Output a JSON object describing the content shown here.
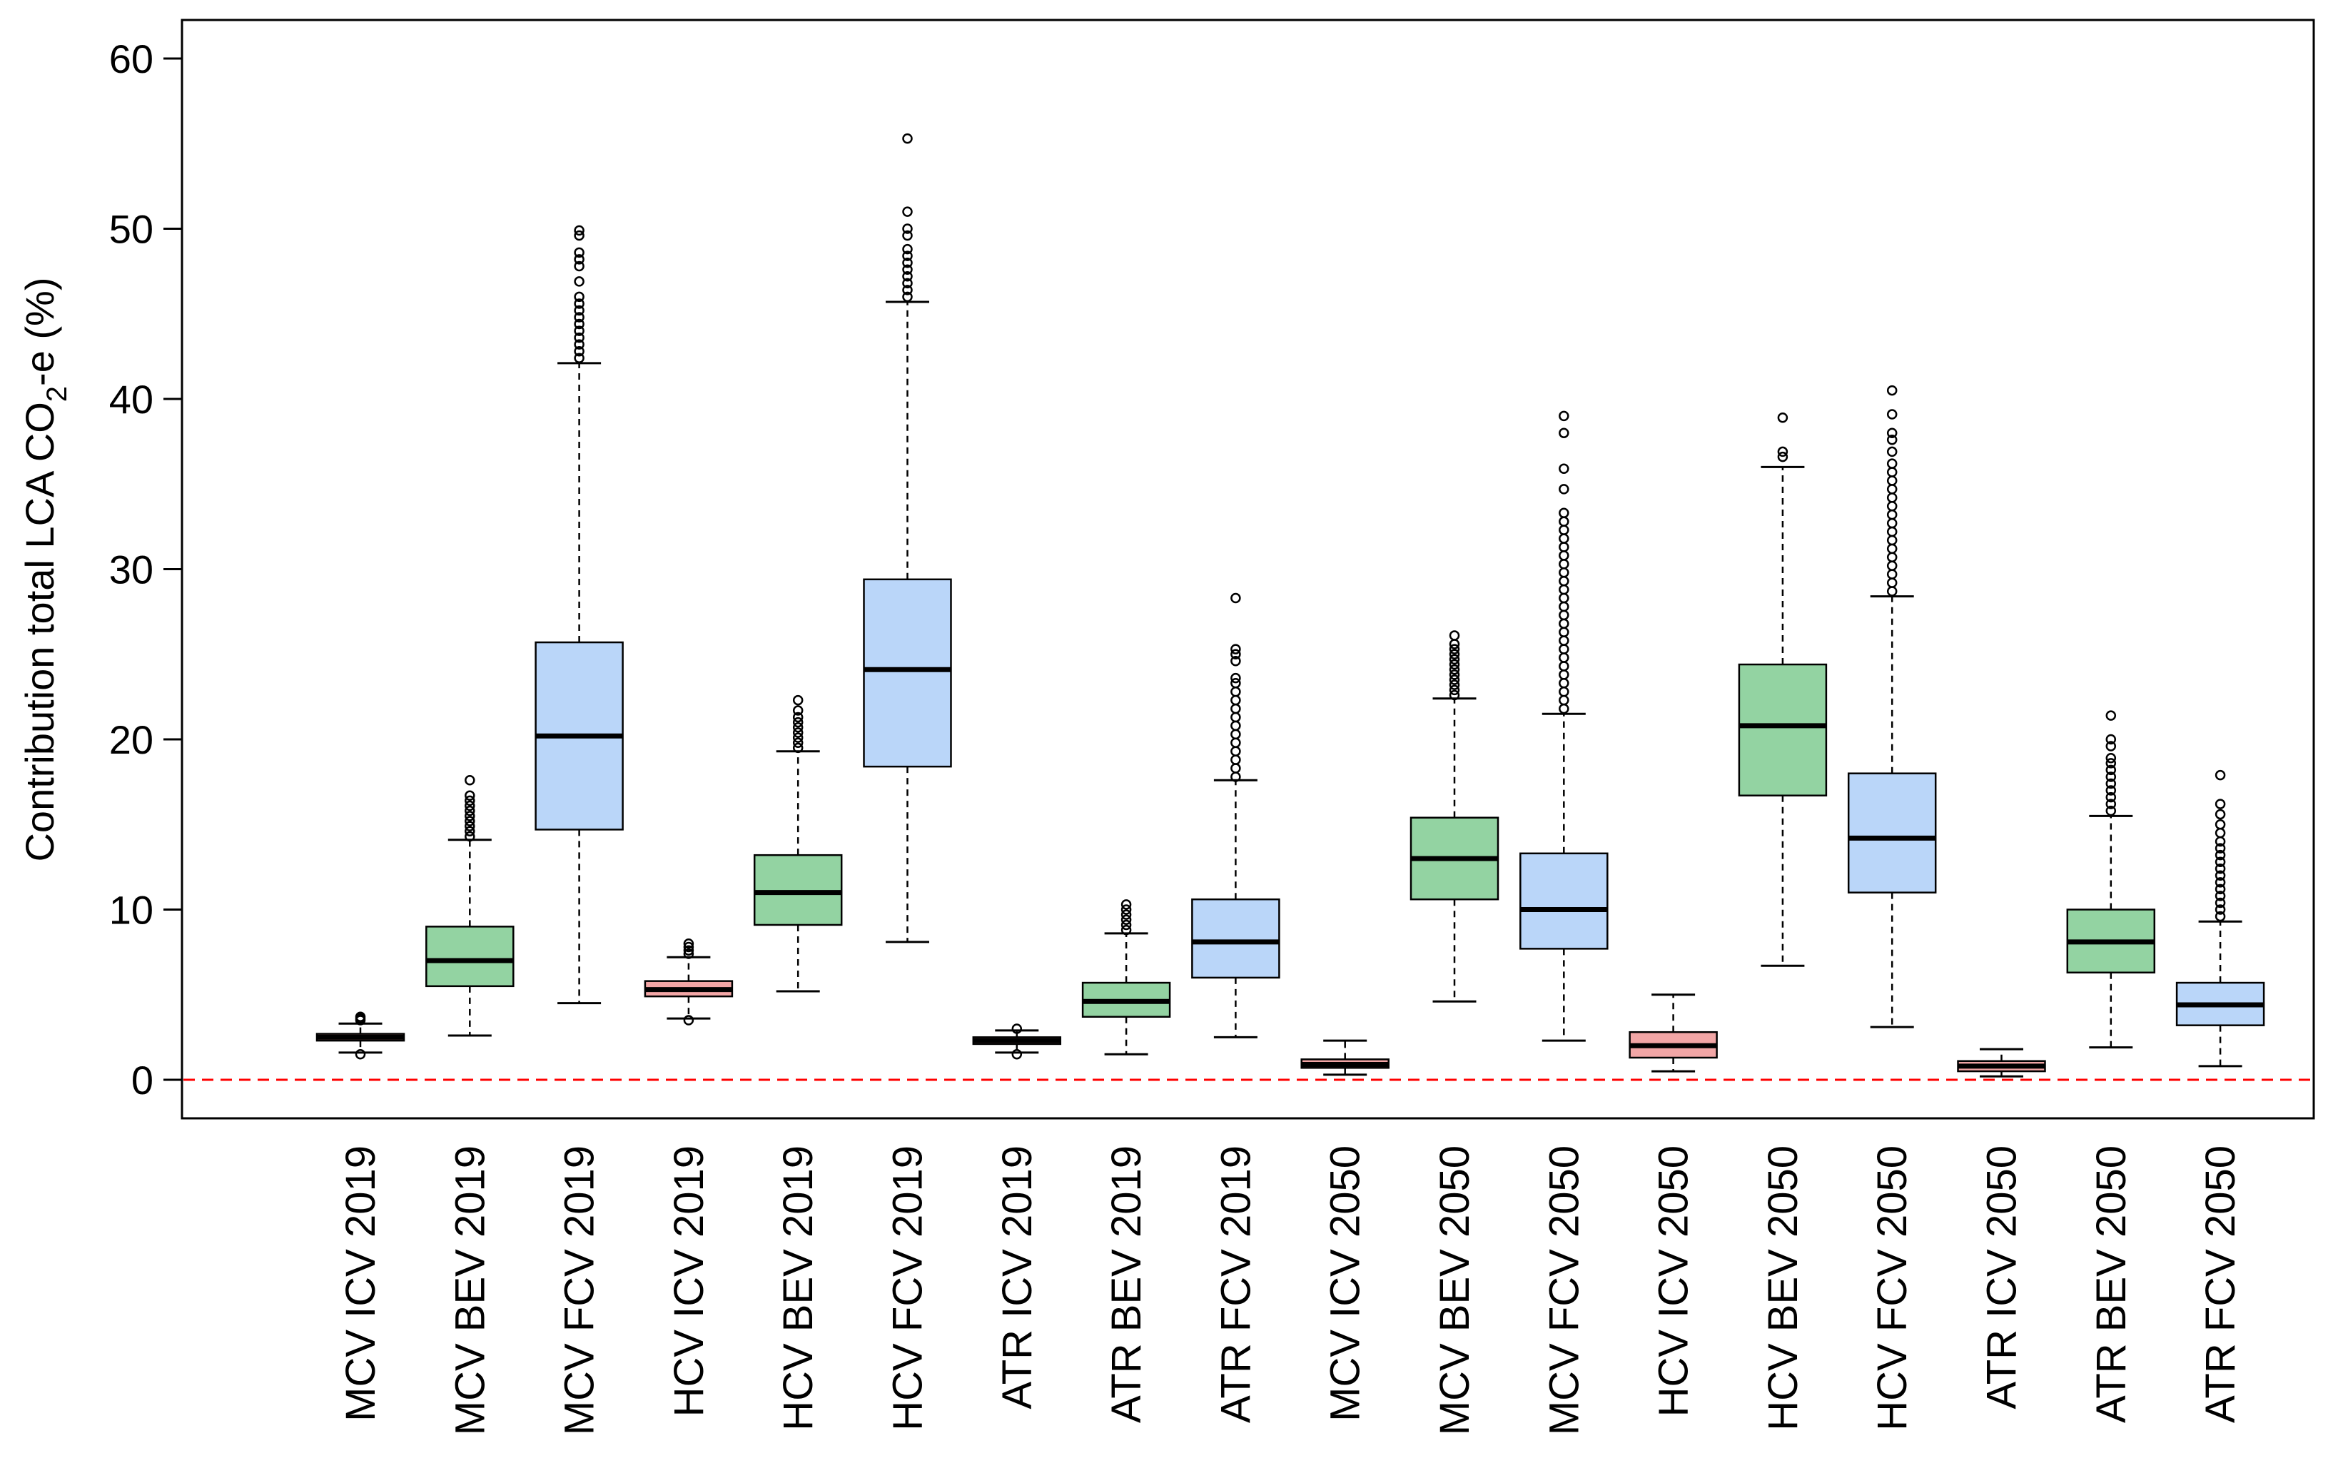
{
  "chart_data": {
    "type": "boxplot",
    "ylabel_main": "Contribution total LCA CO",
    "ylabel_sub": "2",
    "ylabel_tail": "-e (%)",
    "ylim": [
      -2.5,
      62
    ],
    "yticks": [
      0,
      10,
      20,
      30,
      40,
      50,
      60
    ],
    "reference_line": {
      "y": 0,
      "color": "#ff0000",
      "style": "dashed"
    },
    "colors": {
      "ICV": "#f2a6a6",
      "BEV": "#93d3a2",
      "FCV": "#bad6f9"
    },
    "categories": [
      "MCV ICV 2019",
      "MCV BEV 2019",
      "MCV FCV 2019",
      "HCV ICV 2019",
      "HCV BEV 2019",
      "HCV FCV 2019",
      "ATR ICV 2019",
      "ATR BEV 2019",
      "ATR FCV 2019",
      "MCV ICV 2050",
      "MCV BEV 2050",
      "MCV FCV 2050",
      "HCV ICV 2050",
      "HCV BEV 2050",
      "HCV FCV 2050",
      "ATR ICV 2050",
      "ATR BEV 2050",
      "ATR FCV 2050"
    ],
    "boxes": [
      {
        "label": "MCV ICV 2019",
        "type": "ICV",
        "whisker_low": 1.6,
        "q1": 2.3,
        "median": 2.5,
        "q3": 2.7,
        "whisker_high": 3.3,
        "outliers": [
          1.5,
          3.5,
          3.6,
          3.7
        ]
      },
      {
        "label": "MCV BEV 2019",
        "type": "BEV",
        "whisker_low": 2.6,
        "q1": 5.5,
        "median": 7.0,
        "q3": 9.0,
        "whisker_high": 14.1,
        "outliers": [
          14.3,
          14.6,
          14.9,
          15.2,
          15.5,
          15.8,
          16.1,
          16.4,
          16.7,
          17.6
        ]
      },
      {
        "label": "MCV FCV 2019",
        "type": "FCV",
        "whisker_low": 4.5,
        "q1": 14.7,
        "median": 20.2,
        "q3": 25.7,
        "whisker_high": 42.1,
        "outliers": [
          42.4,
          42.8,
          43.2,
          43.6,
          44.0,
          44.4,
          44.8,
          45.2,
          45.6,
          46.0,
          46.9,
          47.8,
          48.2,
          48.6,
          49.6,
          49.9
        ]
      },
      {
        "label": "HCV ICV 2019",
        "type": "ICV",
        "whisker_low": 3.6,
        "q1": 4.9,
        "median": 5.3,
        "q3": 5.8,
        "whisker_high": 7.2,
        "outliers": [
          3.5,
          7.4,
          7.6,
          7.8,
          8.0
        ]
      },
      {
        "label": "HCV BEV 2019",
        "type": "BEV",
        "whisker_low": 5.2,
        "q1": 9.1,
        "median": 11.0,
        "q3": 13.2,
        "whisker_high": 19.3,
        "outliers": [
          19.5,
          19.8,
          20.1,
          20.4,
          20.7,
          21.0,
          21.3,
          21.7,
          22.3
        ]
      },
      {
        "label": "HCV FCV 2019",
        "type": "FCV",
        "whisker_low": 8.1,
        "q1": 18.4,
        "median": 24.1,
        "q3": 29.4,
        "whisker_high": 45.7,
        "outliers": [
          46.0,
          46.4,
          46.8,
          47.2,
          47.6,
          48.0,
          48.4,
          48.8,
          49.6,
          50.0,
          51.0,
          55.3
        ]
      },
      {
        "label": "ATR ICV 2019",
        "type": "ICV",
        "whisker_low": 1.6,
        "q1": 2.1,
        "median": 2.3,
        "q3": 2.5,
        "whisker_high": 2.9,
        "outliers": [
          1.5,
          3.0
        ]
      },
      {
        "label": "ATR BEV 2019",
        "type": "BEV",
        "whisker_low": 1.5,
        "q1": 3.7,
        "median": 4.6,
        "q3": 5.7,
        "whisker_high": 8.6,
        "outliers": [
          8.8,
          9.1,
          9.4,
          9.7,
          10.0,
          10.3
        ]
      },
      {
        "label": "ATR FCV 2019",
        "type": "FCV",
        "whisker_low": 2.5,
        "q1": 6.0,
        "median": 8.1,
        "q3": 10.6,
        "whisker_high": 17.6,
        "outliers": [
          17.8,
          18.3,
          18.8,
          19.3,
          19.8,
          20.3,
          20.8,
          21.3,
          21.8,
          22.3,
          22.8,
          23.3,
          23.6,
          24.6,
          25.0,
          25.3,
          28.3
        ]
      },
      {
        "label": "MCV ICV 2050",
        "type": "ICV",
        "whisker_low": 0.3,
        "q1": 0.7,
        "median": 0.9,
        "q3": 1.2,
        "whisker_high": 2.3,
        "outliers": []
      },
      {
        "label": "MCV BEV 2050",
        "type": "BEV",
        "whisker_low": 4.6,
        "q1": 10.6,
        "median": 13.0,
        "q3": 15.4,
        "whisker_high": 22.4,
        "outliers": [
          22.6,
          22.9,
          23.2,
          23.5,
          23.8,
          24.1,
          24.4,
          24.7,
          25.0,
          25.3,
          25.6,
          26.1
        ]
      },
      {
        "label": "MCV FCV 2050",
        "type": "FCV",
        "whisker_low": 2.3,
        "q1": 7.7,
        "median": 10.0,
        "q3": 13.3,
        "whisker_high": 21.5,
        "outliers": [
          21.8,
          22.3,
          22.8,
          23.3,
          23.8,
          24.3,
          24.8,
          25.3,
          25.8,
          26.3,
          26.8,
          27.3,
          27.8,
          28.3,
          28.8,
          29.3,
          29.8,
          30.3,
          30.8,
          31.3,
          31.8,
          32.3,
          32.8,
          33.3,
          34.7,
          35.9,
          38.0,
          39.0
        ]
      },
      {
        "label": "HCV ICV 2050",
        "type": "ICV",
        "whisker_low": 0.5,
        "q1": 1.3,
        "median": 2.0,
        "q3": 2.8,
        "whisker_high": 5.0,
        "outliers": []
      },
      {
        "label": "HCV BEV 2050",
        "type": "BEV",
        "whisker_low": 6.7,
        "q1": 16.7,
        "median": 20.8,
        "q3": 24.4,
        "whisker_high": 36.0,
        "outliers": [
          36.6,
          36.9,
          38.9
        ]
      },
      {
        "label": "HCV FCV 2050",
        "type": "FCV",
        "whisker_low": 3.1,
        "q1": 11.0,
        "median": 14.2,
        "q3": 18.0,
        "whisker_high": 28.4,
        "outliers": [
          28.7,
          29.2,
          29.7,
          30.2,
          30.7,
          31.2,
          31.7,
          32.2,
          32.7,
          33.2,
          33.7,
          34.2,
          34.7,
          35.2,
          35.7,
          36.2,
          36.9,
          37.6,
          38.0,
          39.1,
          40.5
        ]
      },
      {
        "label": "ATR ICV 2050",
        "type": "ICV",
        "whisker_low": 0.2,
        "q1": 0.5,
        "median": 0.8,
        "q3": 1.1,
        "whisker_high": 1.8,
        "outliers": []
      },
      {
        "label": "ATR BEV 2050",
        "type": "BEV",
        "whisker_low": 1.9,
        "q1": 6.3,
        "median": 8.1,
        "q3": 10.0,
        "whisker_high": 15.5,
        "outliers": [
          15.8,
          16.2,
          16.6,
          17.0,
          17.4,
          17.8,
          18.2,
          18.6,
          18.9,
          19.6,
          20.0,
          21.4
        ]
      },
      {
        "label": "ATR FCV 2050",
        "type": "FCV",
        "whisker_low": 0.8,
        "q1": 3.2,
        "median": 4.4,
        "q3": 5.7,
        "whisker_high": 9.3,
        "outliers": [
          9.6,
          10.0,
          10.4,
          10.8,
          11.2,
          11.6,
          12.0,
          12.4,
          12.8,
          13.2,
          13.6,
          14.0,
          14.5,
          15.0,
          15.6,
          16.2,
          17.9
        ]
      }
    ]
  }
}
